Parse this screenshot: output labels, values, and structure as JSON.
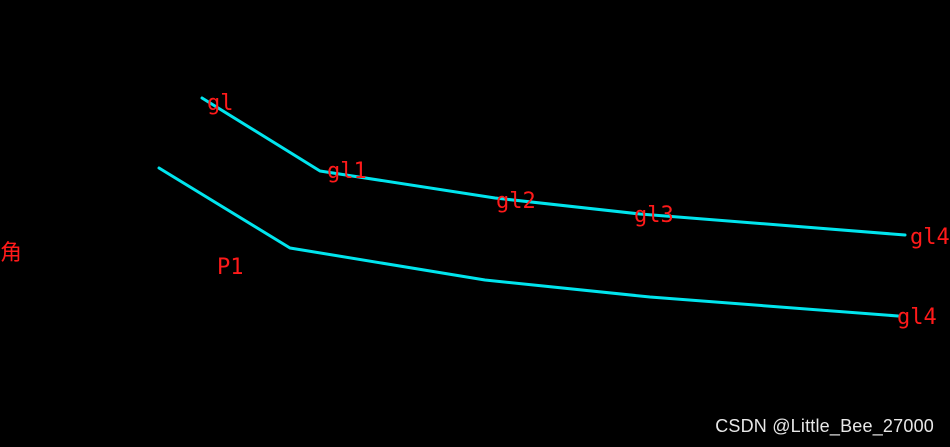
{
  "colors": {
    "background": "#000000",
    "polyline": "#00e5ee",
    "label": "#ff1a1a",
    "watermark": "#e8e8e8"
  },
  "labels": {
    "left_char": "角",
    "upper_start": "gl",
    "upper_v1": "gl1",
    "upper_v2": "gl2",
    "upper_v3": "gl3",
    "upper_end": "gl4",
    "lower_p1": "P1",
    "lower_end": "gl4"
  },
  "watermark": "CSDN @Little_Bee_27000"
}
